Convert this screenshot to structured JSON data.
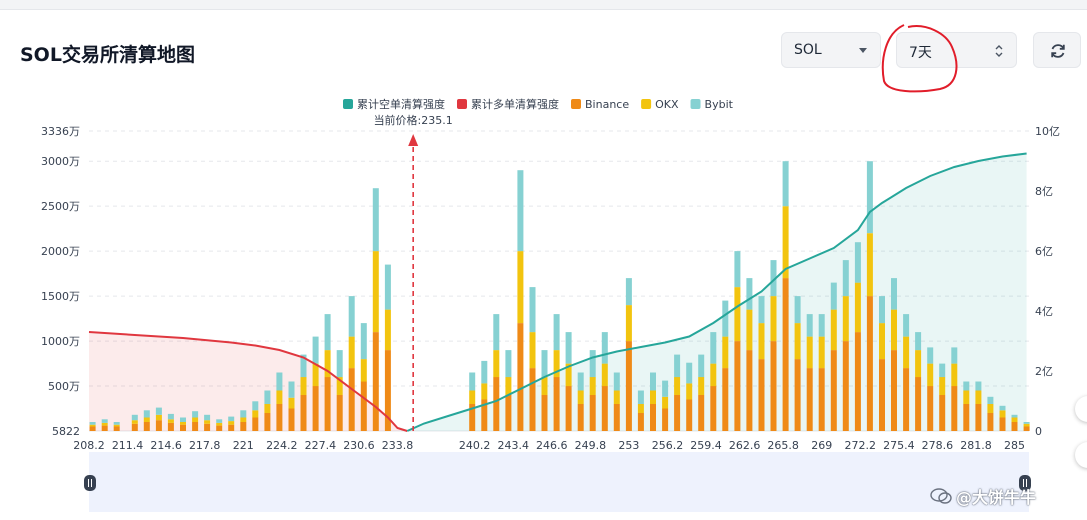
{
  "title": "SOL交易所清算地图",
  "controls": {
    "coin_select": "SOL",
    "period_select": "7天"
  },
  "colors": {
    "short_cum": "#26a69a",
    "long_cum": "#e0373f",
    "binance": "#ef8a17",
    "okx": "#f2c40f",
    "bybit": "#86d1d2"
  },
  "icons": [
    "chevron-down-icon",
    "up-down-arrows-icon",
    "refresh-icon",
    "handle-icon"
  ],
  "watermark": "@大饼牛牛",
  "chart_data": {
    "type": "bar",
    "legend": [
      "累计空单清算强度",
      "累计多单清算强度",
      "Binance",
      "OKX",
      "Bybit"
    ],
    "legend_position": "top-center",
    "current_price_label": "当前价格:235.1",
    "current_price": 235.1,
    "x_range": [
      208.2,
      286.2
    ],
    "x_ticks": [
      "208.2",
      "211.4",
      "214.6",
      "217.8",
      "221",
      "224.2",
      "227.4",
      "230.6",
      "233.8",
      "240.2",
      "243.4",
      "246.6",
      "249.8",
      "253",
      "256.2",
      "259.4",
      "262.6",
      "265.8",
      "269",
      "272.2",
      "275.4",
      "278.6",
      "281.8",
      "285"
    ],
    "y_left_ticks": [
      "5822",
      "500万",
      "1000万",
      "1500万",
      "2000万",
      "2500万",
      "3000万",
      "3336万"
    ],
    "y_left_range_wan": [
      0,
      3336
    ],
    "y_right_ticks": [
      "0",
      "2亿",
      "4亿",
      "6亿",
      "8亿",
      "10亿"
    ],
    "y_right_range_yi": [
      0,
      10
    ],
    "grid": "horizontal dashed",
    "bar_series": [
      {
        "name": "Binance",
        "x": [
          208.5,
          209.5,
          210.5,
          212,
          213,
          214,
          215,
          216,
          217,
          218,
          219,
          220,
          221,
          222,
          223,
          224,
          225,
          226,
          227,
          228,
          229,
          230,
          231,
          232,
          233,
          234,
          235,
          236,
          237,
          238,
          239,
          240,
          241,
          242,
          243,
          244,
          245,
          246,
          247,
          248,
          249,
          250,
          251,
          252,
          253,
          254,
          255,
          256,
          257,
          258,
          259,
          260,
          261,
          262,
          263,
          264,
          265,
          266,
          267,
          268,
          269,
          270,
          271,
          272,
          273,
          274,
          275,
          276,
          277,
          278,
          279,
          280,
          281,
          282,
          283,
          284,
          285,
          286
        ],
        "values": [
          50,
          60,
          50,
          80,
          100,
          120,
          90,
          70,
          100,
          80,
          60,
          70,
          100,
          150,
          200,
          300,
          250,
          400,
          500,
          600,
          400,
          700,
          550,
          1100,
          900,
          0,
          0,
          0,
          0,
          0,
          0,
          300,
          350,
          600,
          400,
          1200,
          700,
          400,
          600,
          500,
          300,
          400,
          500,
          300,
          1000,
          200,
          300,
          250,
          400,
          350,
          400,
          500,
          700,
          1000,
          900,
          800,
          1000,
          1700,
          800,
          700,
          700,
          900,
          1000,
          1100,
          1500,
          800,
          900,
          700,
          600,
          500,
          400,
          500,
          300,
          300,
          200,
          150,
          100,
          50
        ]
      },
      {
        "name": "OKX",
        "x": [
          208.5,
          209.5,
          210.5,
          212,
          213,
          214,
          215,
          216,
          217,
          218,
          219,
          220,
          221,
          222,
          223,
          224,
          225,
          226,
          227,
          228,
          229,
          230,
          231,
          232,
          233,
          234,
          235,
          236,
          237,
          238,
          239,
          240,
          241,
          242,
          243,
          244,
          245,
          246,
          247,
          248,
          249,
          250,
          251,
          252,
          253,
          254,
          255,
          256,
          257,
          258,
          259,
          260,
          261,
          262,
          263,
          264,
          265,
          266,
          267,
          268,
          269,
          270,
          271,
          272,
          273,
          274,
          275,
          276,
          277,
          278,
          279,
          280,
          281,
          282,
          283,
          284,
          285,
          286
        ],
        "values": [
          20,
          30,
          20,
          40,
          50,
          60,
          40,
          30,
          50,
          40,
          30,
          40,
          50,
          80,
          100,
          150,
          120,
          200,
          250,
          300,
          200,
          350,
          250,
          900,
          450,
          0,
          0,
          0,
          0,
          0,
          0,
          150,
          180,
          300,
          200,
          800,
          400,
          200,
          300,
          250,
          150,
          200,
          250,
          150,
          400,
          100,
          150,
          130,
          200,
          180,
          200,
          250,
          350,
          600,
          450,
          400,
          500,
          800,
          400,
          350,
          350,
          450,
          500,
          550,
          700,
          400,
          450,
          350,
          300,
          250,
          200,
          250,
          150,
          150,
          100,
          80,
          50,
          30
        ]
      },
      {
        "name": "Bybit",
        "x": [
          208.5,
          209.5,
          210.5,
          212,
          213,
          214,
          215,
          216,
          217,
          218,
          219,
          220,
          221,
          222,
          223,
          224,
          225,
          226,
          227,
          228,
          229,
          230,
          231,
          232,
          233,
          234,
          235,
          236,
          237,
          238,
          239,
          240,
          241,
          242,
          243,
          244,
          245,
          246,
          247,
          248,
          249,
          250,
          251,
          252,
          253,
          254,
          255,
          256,
          257,
          258,
          259,
          260,
          261,
          262,
          263,
          264,
          265,
          266,
          267,
          268,
          269,
          270,
          271,
          272,
          273,
          274,
          275,
          276,
          277,
          278,
          279,
          280,
          281,
          282,
          283,
          284,
          285,
          286
        ],
        "values": [
          30,
          40,
          30,
          60,
          80,
          80,
          60,
          50,
          70,
          60,
          40,
          50,
          80,
          100,
          150,
          200,
          180,
          250,
          300,
          400,
          300,
          450,
          400,
          700,
          500,
          0,
          0,
          0,
          0,
          0,
          0,
          200,
          250,
          400,
          300,
          900,
          500,
          300,
          400,
          350,
          200,
          300,
          350,
          200,
          300,
          150,
          200,
          180,
          250,
          230,
          250,
          350,
          400,
          400,
          350,
          300,
          400,
          500,
          300,
          250,
          250,
          300,
          400,
          450,
          800,
          300,
          350,
          250,
          200,
          180,
          150,
          180,
          100,
          100,
          80,
          50,
          30,
          20
        ]
      }
    ],
    "line_series": [
      {
        "name": "累计多单清算强度",
        "x": [
          208.2,
          212,
          216,
          220,
          222,
          224,
          226,
          228,
          229,
          230,
          231,
          232,
          233,
          233.8,
          234.6
        ],
        "values_yi": [
          3.3,
          3.2,
          3.1,
          2.95,
          2.85,
          2.7,
          2.45,
          2.0,
          1.7,
          1.4,
          1.1,
          0.8,
          0.45,
          0.1,
          0
        ]
      },
      {
        "name": "累计空单清算强度",
        "x": [
          234.6,
          236,
          238,
          240,
          242,
          244,
          246,
          248,
          250,
          252,
          254,
          256,
          258,
          260,
          262,
          264,
          266,
          268,
          270,
          272,
          273,
          274,
          276,
          278,
          280,
          282,
          284,
          286
        ],
        "values_yi": [
          0,
          0.25,
          0.5,
          0.75,
          1.0,
          1.4,
          1.8,
          2.15,
          2.45,
          2.65,
          2.8,
          2.95,
          3.15,
          3.6,
          4.15,
          4.65,
          5.4,
          5.75,
          6.1,
          6.7,
          7.3,
          7.6,
          8.1,
          8.5,
          8.8,
          9.0,
          9.15,
          9.25
        ]
      }
    ]
  }
}
